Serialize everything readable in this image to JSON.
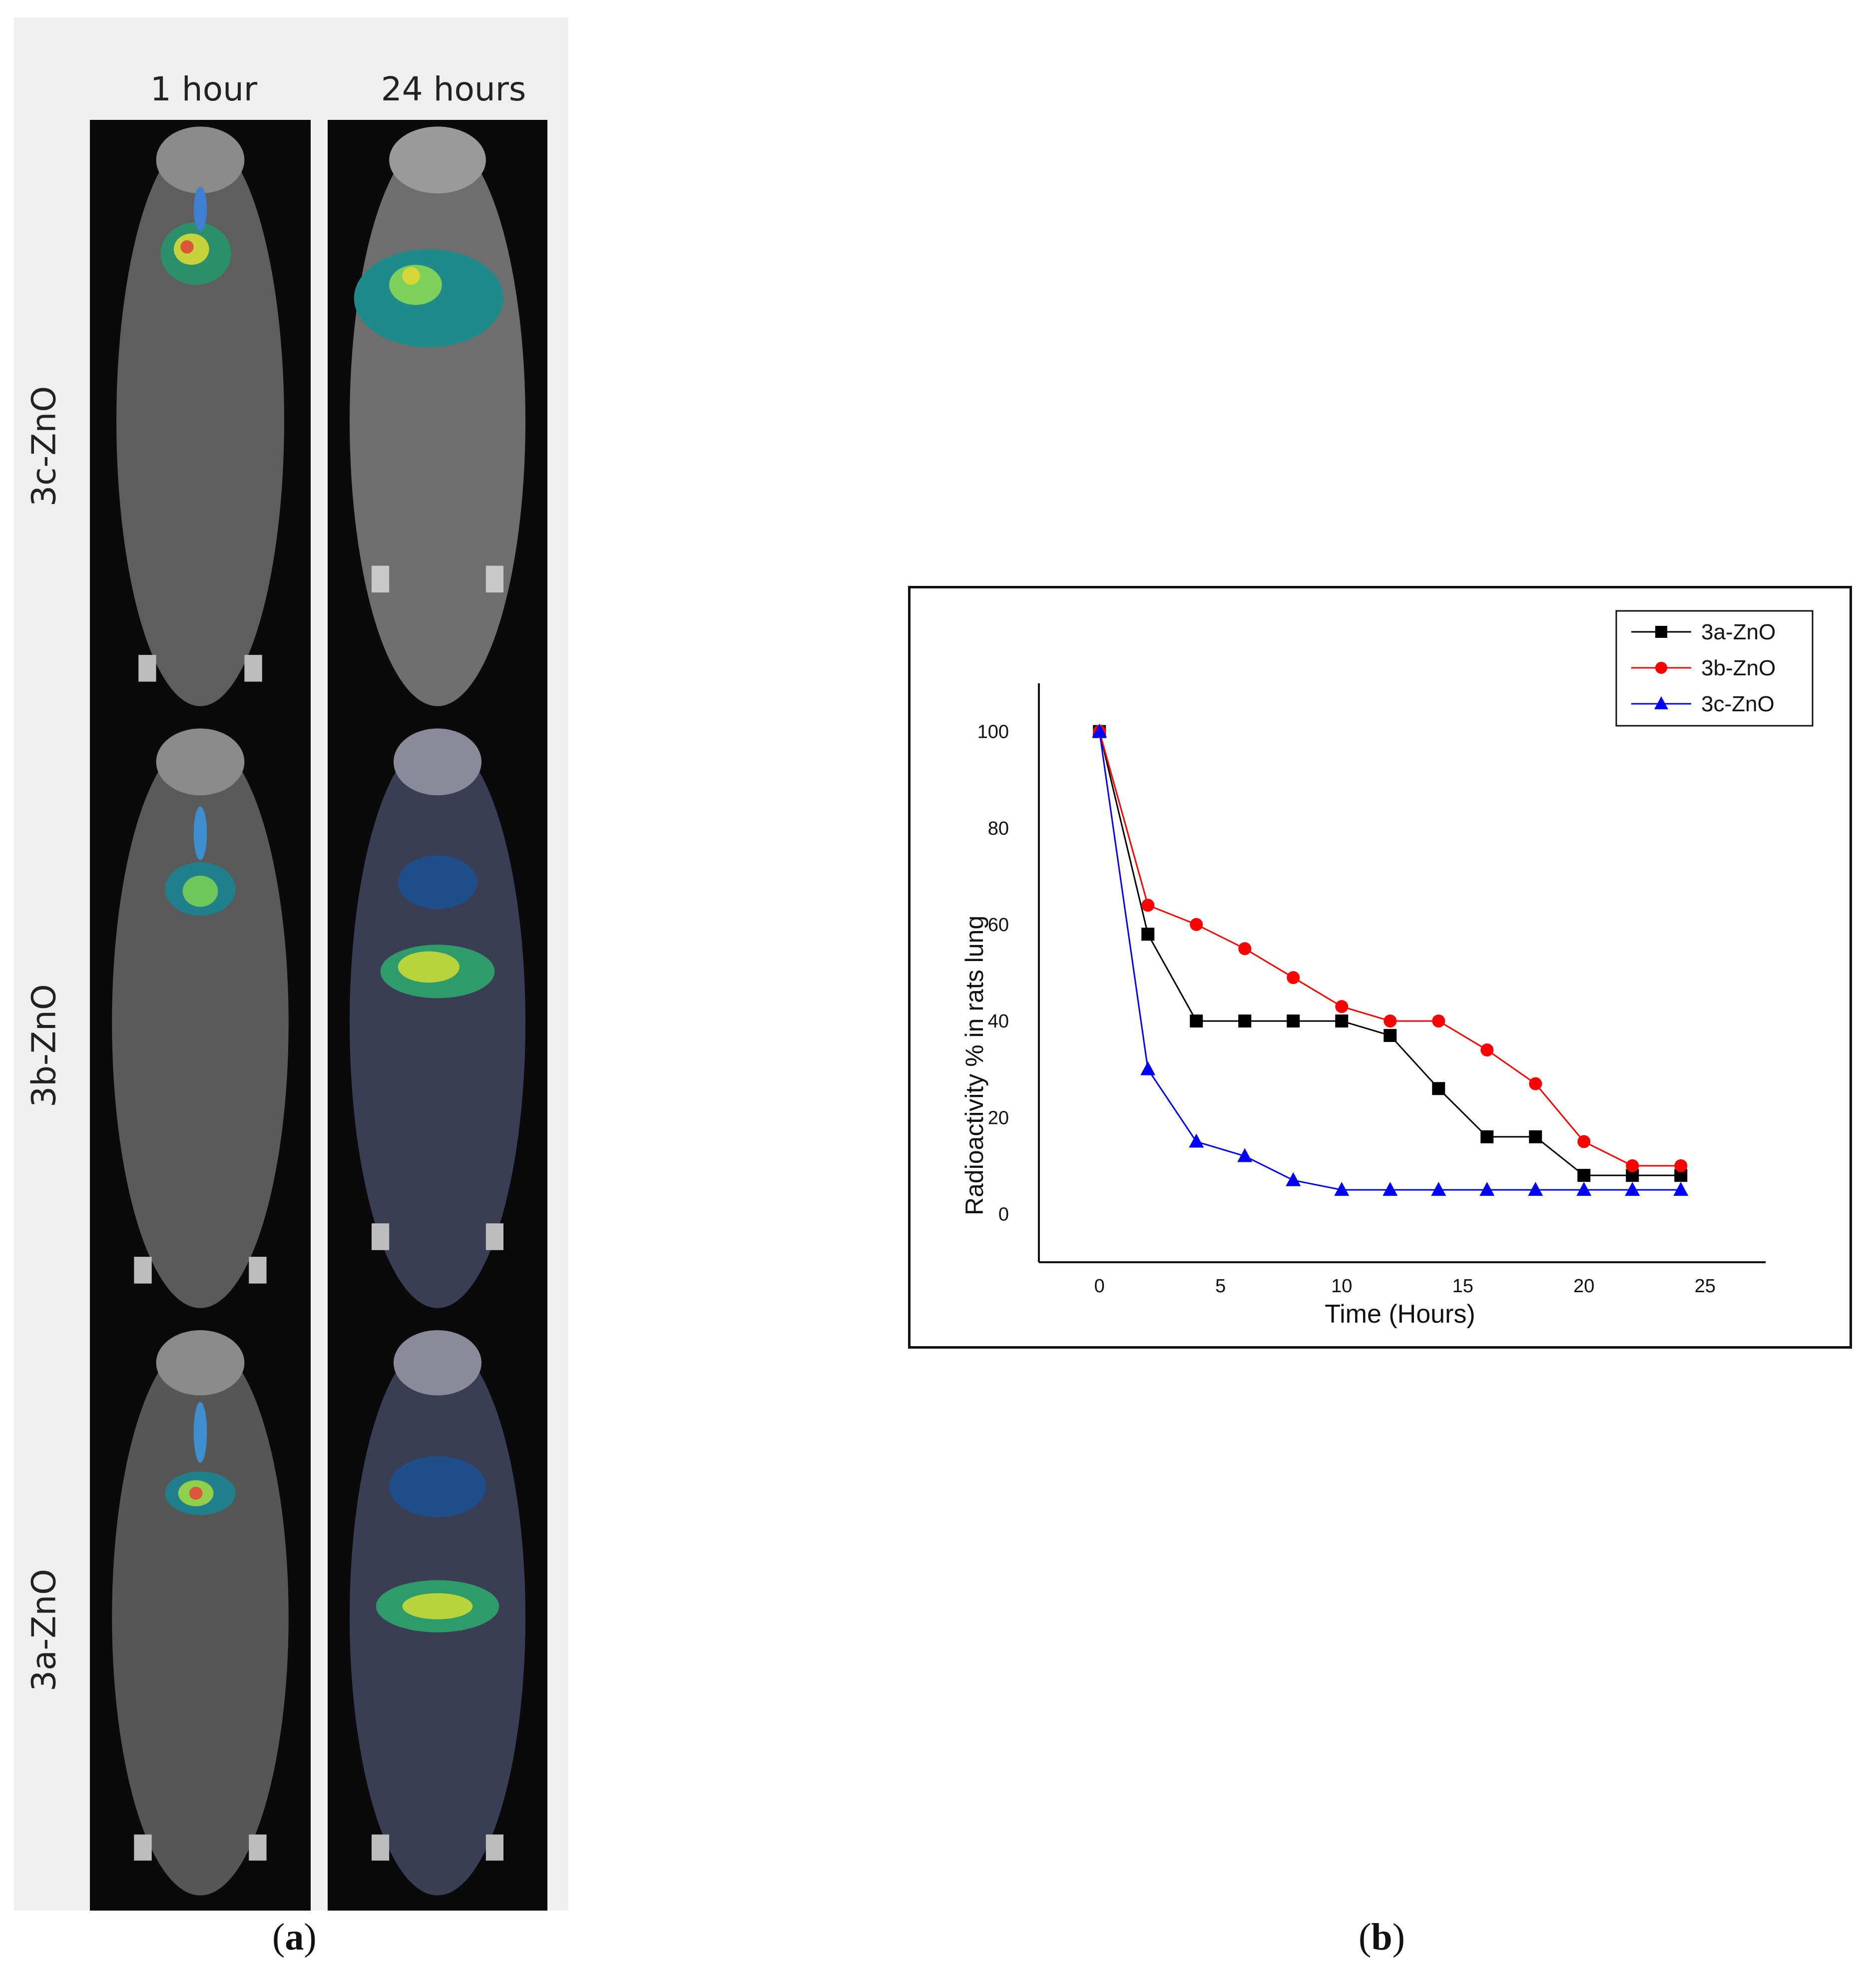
{
  "panel_a": {
    "column_headers": [
      "1 hour",
      "24 hours"
    ],
    "row_labels": [
      "3c-ZnO",
      "3b-ZnO",
      "3a-ZnO"
    ],
    "letter": "a"
  },
  "panel_b": {
    "letter": "b"
  },
  "chart_data": {
    "type": "line",
    "xlabel": "Time (Hours)",
    "ylabel": "Radioactivity % in rats lung",
    "xlim": [
      -2.5,
      27.5
    ],
    "ylim": [
      -10,
      110
    ],
    "xticks": [
      0,
      5,
      10,
      15,
      20,
      25
    ],
    "yticks": [
      0,
      20,
      40,
      60,
      80,
      100
    ],
    "grid": false,
    "legend_position": "top-right",
    "x": [
      0,
      2,
      4,
      6,
      8,
      10,
      12,
      14,
      16,
      18,
      20,
      22,
      24
    ],
    "series": [
      {
        "name": "3a-ZnO",
        "color": "#000000",
        "marker": "square",
        "values": [
          100,
          58,
          40,
          40,
          40,
          40,
          37,
          26,
          16,
          16,
          8,
          8,
          8
        ]
      },
      {
        "name": "3b-ZnO",
        "color": "#ff0000",
        "marker": "circle",
        "values": [
          100,
          64,
          60,
          55,
          49,
          43,
          40,
          40,
          34,
          27,
          15,
          10,
          10
        ]
      },
      {
        "name": "3c-ZnO",
        "color": "#0000ff",
        "marker": "triangle",
        "values": [
          100,
          30,
          15,
          12,
          7,
          5,
          5,
          5,
          5,
          5,
          5,
          5,
          5
        ]
      }
    ]
  }
}
